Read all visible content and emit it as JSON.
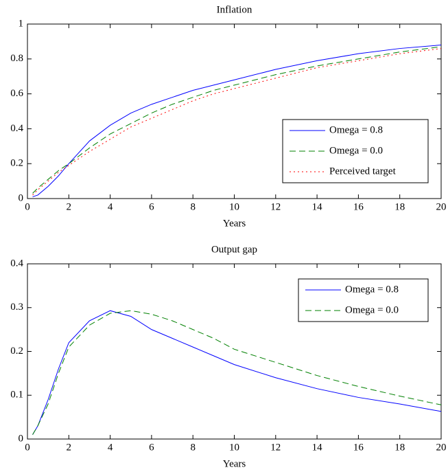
{
  "chart_data": [
    {
      "type": "line",
      "title": "Inflation",
      "x_label": "Years",
      "x": [
        0.25,
        0.5,
        1,
        1.5,
        2,
        3,
        4,
        5,
        6,
        7,
        8,
        9,
        10,
        12,
        14,
        16,
        18,
        20
      ],
      "series": [
        {
          "name": "Omega = 0.8",
          "color": "#0000ff",
          "dash": "solid",
          "values": [
            0.01,
            0.02,
            0.07,
            0.13,
            0.2,
            0.33,
            0.42,
            0.49,
            0.54,
            0.58,
            0.62,
            0.65,
            0.68,
            0.74,
            0.79,
            0.83,
            0.86,
            0.88
          ]
        },
        {
          "name": "Omega = 0.0",
          "color": "#008000",
          "dash": "dashed",
          "values": [
            0.03,
            0.06,
            0.11,
            0.16,
            0.2,
            0.29,
            0.37,
            0.43,
            0.49,
            0.54,
            0.58,
            0.62,
            0.65,
            0.71,
            0.76,
            0.8,
            0.84,
            0.87
          ]
        },
        {
          "name": "Perceived target",
          "color": "#ff0000",
          "dash": "dotted",
          "values": [
            0.02,
            0.05,
            0.1,
            0.15,
            0.19,
            0.27,
            0.34,
            0.41,
            0.46,
            0.51,
            0.56,
            0.6,
            0.63,
            0.69,
            0.75,
            0.79,
            0.83,
            0.86
          ]
        }
      ],
      "xlim": [
        0,
        20
      ],
      "xticks": [
        0,
        2,
        4,
        6,
        8,
        10,
        12,
        14,
        16,
        18,
        20
      ],
      "ylim": [
        0,
        1
      ],
      "yticks": [
        0,
        0.2,
        0.4,
        0.6,
        0.8,
        1
      ],
      "grid": false,
      "legend": "lower right"
    },
    {
      "type": "line",
      "title": "Output gap",
      "x_label": "Years",
      "x": [
        0.25,
        0.5,
        1,
        1.5,
        2,
        3,
        4,
        5,
        6,
        7,
        8,
        9,
        10,
        12,
        14,
        16,
        18,
        20
      ],
      "series": [
        {
          "name": "Omega = 0.8",
          "color": "#0000ff",
          "dash": "solid",
          "values": [
            0.01,
            0.03,
            0.09,
            0.16,
            0.22,
            0.27,
            0.293,
            0.28,
            0.25,
            0.23,
            0.21,
            0.19,
            0.17,
            0.14,
            0.115,
            0.095,
            0.08,
            0.063
          ]
        },
        {
          "name": "Omega = 0.0",
          "color": "#008000",
          "dash": "dashed",
          "values": [
            0.01,
            0.03,
            0.08,
            0.15,
            0.21,
            0.26,
            0.287,
            0.293,
            0.285,
            0.27,
            0.25,
            0.23,
            0.205,
            0.175,
            0.145,
            0.12,
            0.098,
            0.078
          ]
        }
      ],
      "xlim": [
        0,
        20
      ],
      "xticks": [
        0,
        2,
        4,
        6,
        8,
        10,
        12,
        14,
        16,
        18,
        20
      ],
      "ylim": [
        0,
        0.4
      ],
      "yticks": [
        0,
        0.1,
        0.2,
        0.3,
        0.4
      ],
      "grid": false,
      "legend": "upper right"
    }
  ]
}
